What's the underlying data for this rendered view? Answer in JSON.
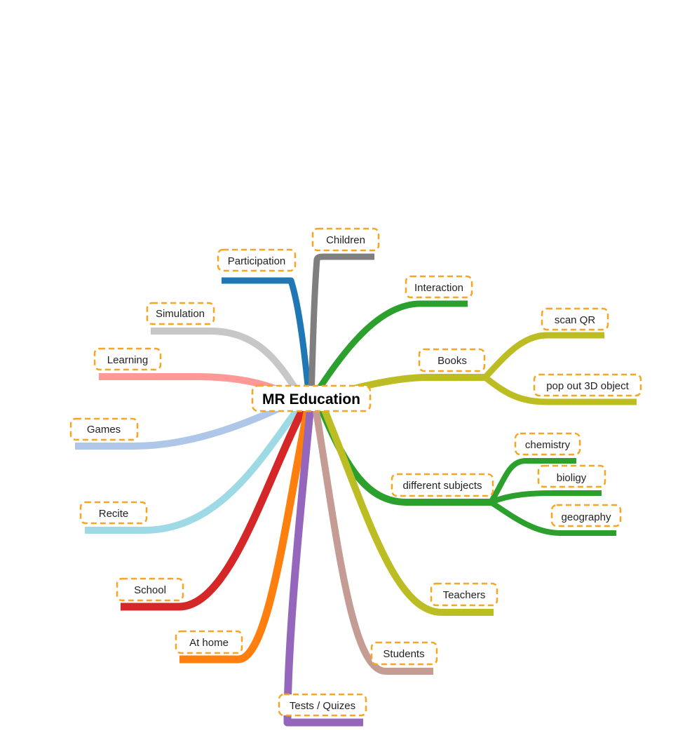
{
  "root": {
    "label": "MR Education"
  },
  "nodes": {
    "participation": {
      "label": "Participation",
      "color": "#1f77b4"
    },
    "children": {
      "label": "Children",
      "color": "#7f7f7f"
    },
    "interaction": {
      "label": "Interaction",
      "color": "#2ca02c"
    },
    "books": {
      "label": "Books",
      "color": "#bcbd22"
    },
    "scan_qr": {
      "label": "scan QR",
      "color": "#bcbd22"
    },
    "pop_out": {
      "label": "pop out 3D object",
      "color": "#bcbd22"
    },
    "simulation": {
      "label": "Simulation",
      "color": "#c7c7c7"
    },
    "learning": {
      "label": "Learning",
      "color": "#ff9896"
    },
    "games": {
      "label": "Games",
      "color": "#aec7e8"
    },
    "recite": {
      "label": "Recite",
      "color": "#9edae5"
    },
    "school": {
      "label": "School",
      "color": "#d62728"
    },
    "at_home": {
      "label": "At home",
      "color": "#ff7f0e"
    },
    "tests": {
      "label": "Tests / Quizes",
      "color": "#9467bd"
    },
    "students": {
      "label": "Students",
      "color": "#c49c94"
    },
    "teachers": {
      "label": "Teachers",
      "color": "#bcbd22"
    },
    "subjects": {
      "label": "different subjects",
      "color": "#2ca02c"
    },
    "chemistry": {
      "label": "chemistry",
      "color": "#2ca02c"
    },
    "bioligy": {
      "label": "bioligy",
      "color": "#2ca02c"
    },
    "geography": {
      "label": "geography",
      "color": "#2ca02c"
    }
  }
}
